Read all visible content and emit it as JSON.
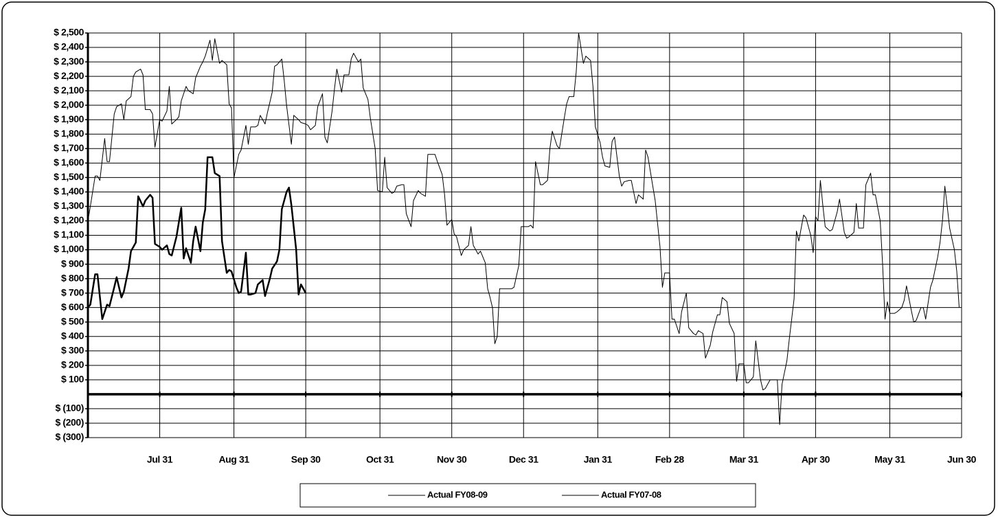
{
  "chart_data": {
    "type": "line",
    "xlim": [
      0,
      365
    ],
    "xticks": [
      {
        "value": 30,
        "label": "Jul 31"
      },
      {
        "value": 61,
        "label": "Aug 31"
      },
      {
        "value": 91,
        "label": "Sep 30"
      },
      {
        "value": 122,
        "label": "Oct 31"
      },
      {
        "value": 152,
        "label": "Nov 30"
      },
      {
        "value": 182,
        "label": "Dec 31"
      },
      {
        "value": 213,
        "label": "Jan 31"
      },
      {
        "value": 243,
        "label": "Feb 28"
      },
      {
        "value": 274,
        "label": "Mar 31"
      },
      {
        "value": 304,
        "label": "Apr 30"
      },
      {
        "value": 335,
        "label": "May 31"
      },
      {
        "value": 365,
        "label": "Jun 30"
      }
    ],
    "ylim": [
      -300,
      2500
    ],
    "yticks": [
      {
        "value": 2500,
        "label": "$ 2,500"
      },
      {
        "value": 2400,
        "label": "$ 2,400"
      },
      {
        "value": 2300,
        "label": "$ 2,300"
      },
      {
        "value": 2200,
        "label": "$ 2,200"
      },
      {
        "value": 2100,
        "label": "$ 2,100"
      },
      {
        "value": 2000,
        "label": "$ 2,000"
      },
      {
        "value": 1900,
        "label": "$ 1,900"
      },
      {
        "value": 1800,
        "label": "$ 1,800"
      },
      {
        "value": 1700,
        "label": "$ 1,700"
      },
      {
        "value": 1600,
        "label": "$ 1,600"
      },
      {
        "value": 1500,
        "label": "$ 1,500"
      },
      {
        "value": 1400,
        "label": "$ 1,400"
      },
      {
        "value": 1300,
        "label": "$ 1,300"
      },
      {
        "value": 1200,
        "label": "$ 1,200"
      },
      {
        "value": 1100,
        "label": "$ 1,100"
      },
      {
        "value": 1000,
        "label": "$ 1,000"
      },
      {
        "value": 900,
        "label": "$ 900"
      },
      {
        "value": 800,
        "label": "$ 800"
      },
      {
        "value": 700,
        "label": "$ 700"
      },
      {
        "value": 600,
        "label": "$ 600"
      },
      {
        "value": 500,
        "label": "$ 500"
      },
      {
        "value": 400,
        "label": "$ 400"
      },
      {
        "value": 300,
        "label": "$ 300"
      },
      {
        "value": 200,
        "label": "$ 200"
      },
      {
        "value": 100,
        "label": "$ 100"
      },
      {
        "value": -100,
        "label": "$ (100)"
      },
      {
        "value": -200,
        "label": "$ (200)"
      },
      {
        "value": -300,
        "label": "$ (300)"
      }
    ],
    "grid": true,
    "legend": "bottom",
    "series": [
      {
        "name": "Actual FY08-09",
        "color": "#000000",
        "line_width": 2.5,
        "x": [
          0,
          1,
          3,
          4,
          6,
          8,
          9,
          11,
          12,
          14,
          15,
          17,
          18,
          20,
          21,
          23,
          24,
          26,
          27,
          28,
          30,
          31,
          33,
          34,
          35,
          37,
          39,
          40,
          41,
          43,
          44,
          45,
          47,
          48,
          49,
          50,
          52,
          53,
          55,
          56,
          58,
          59,
          60,
          62,
          63,
          64,
          66,
          67,
          68,
          70,
          71,
          73,
          74,
          76,
          77,
          79,
          80,
          81,
          83,
          84,
          85,
          87,
          88,
          89,
          91
        ],
        "values": [
          600,
          620,
          830,
          830,
          520,
          620,
          610,
          740,
          810,
          670,
          710,
          870,
          990,
          1050,
          1370,
          1300,
          1340,
          1380,
          1360,
          1040,
          1020,
          1000,
          1030,
          970,
          960,
          1090,
          1290,
          940,
          1010,
          910,
          1060,
          1160,
          990,
          1190,
          1280,
          1640,
          1640,
          1530,
          1510,
          1060,
          840,
          860,
          850,
          740,
          700,
          710,
          980,
          690,
          690,
          700,
          760,
          790,
          680,
          800,
          870,
          920,
          1000,
          1280,
          1400,
          1430,
          1310,
          1000,
          690,
          760,
          700
        ]
      },
      {
        "name": "Actual FY07-08",
        "color": "#000000",
        "line_width": 1,
        "x": [
          0,
          1,
          3,
          4,
          5,
          7,
          8,
          9,
          11,
          12,
          14,
          15,
          16,
          18,
          19,
          20,
          22,
          23,
          24,
          26,
          27,
          28,
          30,
          31,
          33,
          34,
          35,
          37,
          38,
          39,
          41,
          42,
          44,
          45,
          47,
          48,
          49,
          51,
          52,
          53,
          55,
          56,
          58,
          59,
          60,
          61,
          63,
          64,
          66,
          67,
          68,
          70,
          71,
          72,
          74,
          75,
          77,
          78,
          79,
          81,
          82,
          83,
          85,
          86,
          88,
          89,
          91,
          92,
          93,
          95,
          96,
          98,
          99,
          100,
          102,
          103,
          104,
          106,
          107,
          109,
          110,
          111,
          113,
          114,
          115,
          117,
          118,
          120,
          121,
          123,
          124,
          125,
          127,
          128,
          129,
          131,
          132,
          133,
          135,
          136,
          138,
          139,
          141,
          142,
          144,
          145,
          146,
          148,
          149,
          150,
          152,
          153,
          154,
          156,
          157,
          159,
          160,
          161,
          163,
          164,
          166,
          167,
          168,
          169,
          170,
          171,
          172,
          174,
          175,
          177,
          178,
          180,
          181,
          182,
          184,
          185,
          186,
          187,
          189,
          190,
          192,
          193,
          194,
          196,
          197,
          199,
          200,
          201,
          203,
          204,
          205,
          207,
          208,
          210,
          211,
          212,
          214,
          215,
          216,
          218,
          219,
          220,
          222,
          223,
          224,
          226,
          227,
          229,
          230,
          232,
          233,
          234,
          236,
          237,
          239,
          240,
          241,
          243,
          244,
          245,
          247,
          248,
          250,
          251,
          253,
          254,
          255,
          257,
          258,
          260,
          261,
          263,
          264,
          265,
          267,
          268,
          270,
          271,
          272,
          274,
          275,
          276,
          278,
          279,
          281,
          282,
          283,
          285,
          286,
          288,
          289,
          290,
          292,
          293,
          295,
          296,
          297,
          299,
          300,
          302,
          303,
          304,
          305,
          306,
          307,
          308,
          310,
          311,
          313,
          314,
          316,
          317,
          318,
          320,
          321,
          322,
          324,
          325,
          327,
          328,
          329,
          331,
          332,
          333,
          334,
          335,
          337,
          338,
          340,
          341,
          342,
          344,
          345,
          346,
          348,
          349,
          350,
          352,
          353,
          355,
          356,
          357,
          358,
          359,
          360,
          362,
          363,
          364
        ],
        "values": [
          1200,
          1300,
          1510,
          1510,
          1480,
          1770,
          1610,
          1610,
          1940,
          1990,
          2010,
          1900,
          2030,
          2060,
          2200,
          2230,
          2250,
          2210,
          1970,
          1970,
          1940,
          1710,
          1900,
          1890,
          1960,
          2130,
          1870,
          1900,
          1920,
          2030,
          2130,
          2100,
          2080,
          2190,
          2270,
          2300,
          2340,
          2450,
          2310,
          2460,
          2290,
          2310,
          2280,
          2010,
          1980,
          1500,
          1660,
          1690,
          1860,
          1730,
          1850,
          1850,
          1860,
          1930,
          1870,
          1950,
          2090,
          2270,
          2280,
          2320,
          2170,
          2000,
          1730,
          1930,
          1900,
          1880,
          1870,
          1860,
          1830,
          1860,
          1990,
          2080,
          1780,
          1740,
          1960,
          2110,
          2250,
          2090,
          2210,
          2210,
          2320,
          2360,
          2300,
          2320,
          2120,
          2040,
          1910,
          1700,
          1410,
          1400,
          1640,
          1430,
          1390,
          1400,
          1440,
          1450,
          1450,
          1250,
          1160,
          1340,
          1410,
          1390,
          1370,
          1660,
          1660,
          1660,
          1610,
          1520,
          1380,
          1170,
          1210,
          1110,
          1090,
          960,
          1000,
          1030,
          1160,
          1030,
          970,
          990,
          910,
          730,
          670,
          600,
          350,
          400,
          730,
          730,
          730,
          730,
          740,
          890,
          1160,
          1160,
          1160,
          1170,
          1150,
          1610,
          1450,
          1450,
          1480,
          1700,
          1820,
          1720,
          1700,
          1910,
          2010,
          2060,
          2060,
          2230,
          2500,
          2290,
          2340,
          2310,
          2130,
          1850,
          1740,
          1640,
          1580,
          1570,
          1750,
          1780,
          1510,
          1440,
          1470,
          1480,
          1480,
          1320,
          1380,
          1350,
          1690,
          1640,
          1440,
          1340,
          1020,
          740,
          840,
          840,
          520,
          520,
          420,
          570,
          700,
          460,
          420,
          410,
          440,
          420,
          250,
          340,
          430,
          550,
          550,
          670,
          640,
          490,
          420,
          90,
          210,
          210,
          80,
          80,
          120,
          370,
          100,
          30,
          40,
          100,
          100,
          100,
          -210,
          70,
          230,
          380,
          660,
          1130,
          1060,
          1240,
          1220,
          1100,
          980,
          1230,
          1200,
          1480,
          1310,
          1160,
          1130,
          1140,
          1260,
          1350,
          1120,
          1080,
          1090,
          1120,
          1320,
          1150,
          1150,
          1450,
          1530,
          1380,
          1380,
          1200,
          900,
          520,
          640,
          560,
          560,
          570,
          600,
          650,
          750,
          580,
          500,
          510,
          600,
          600,
          520,
          740,
          790,
          950,
          1050,
          1200,
          1440,
          1300,
          1150,
          1000,
          850,
          600
        ]
      }
    ]
  }
}
